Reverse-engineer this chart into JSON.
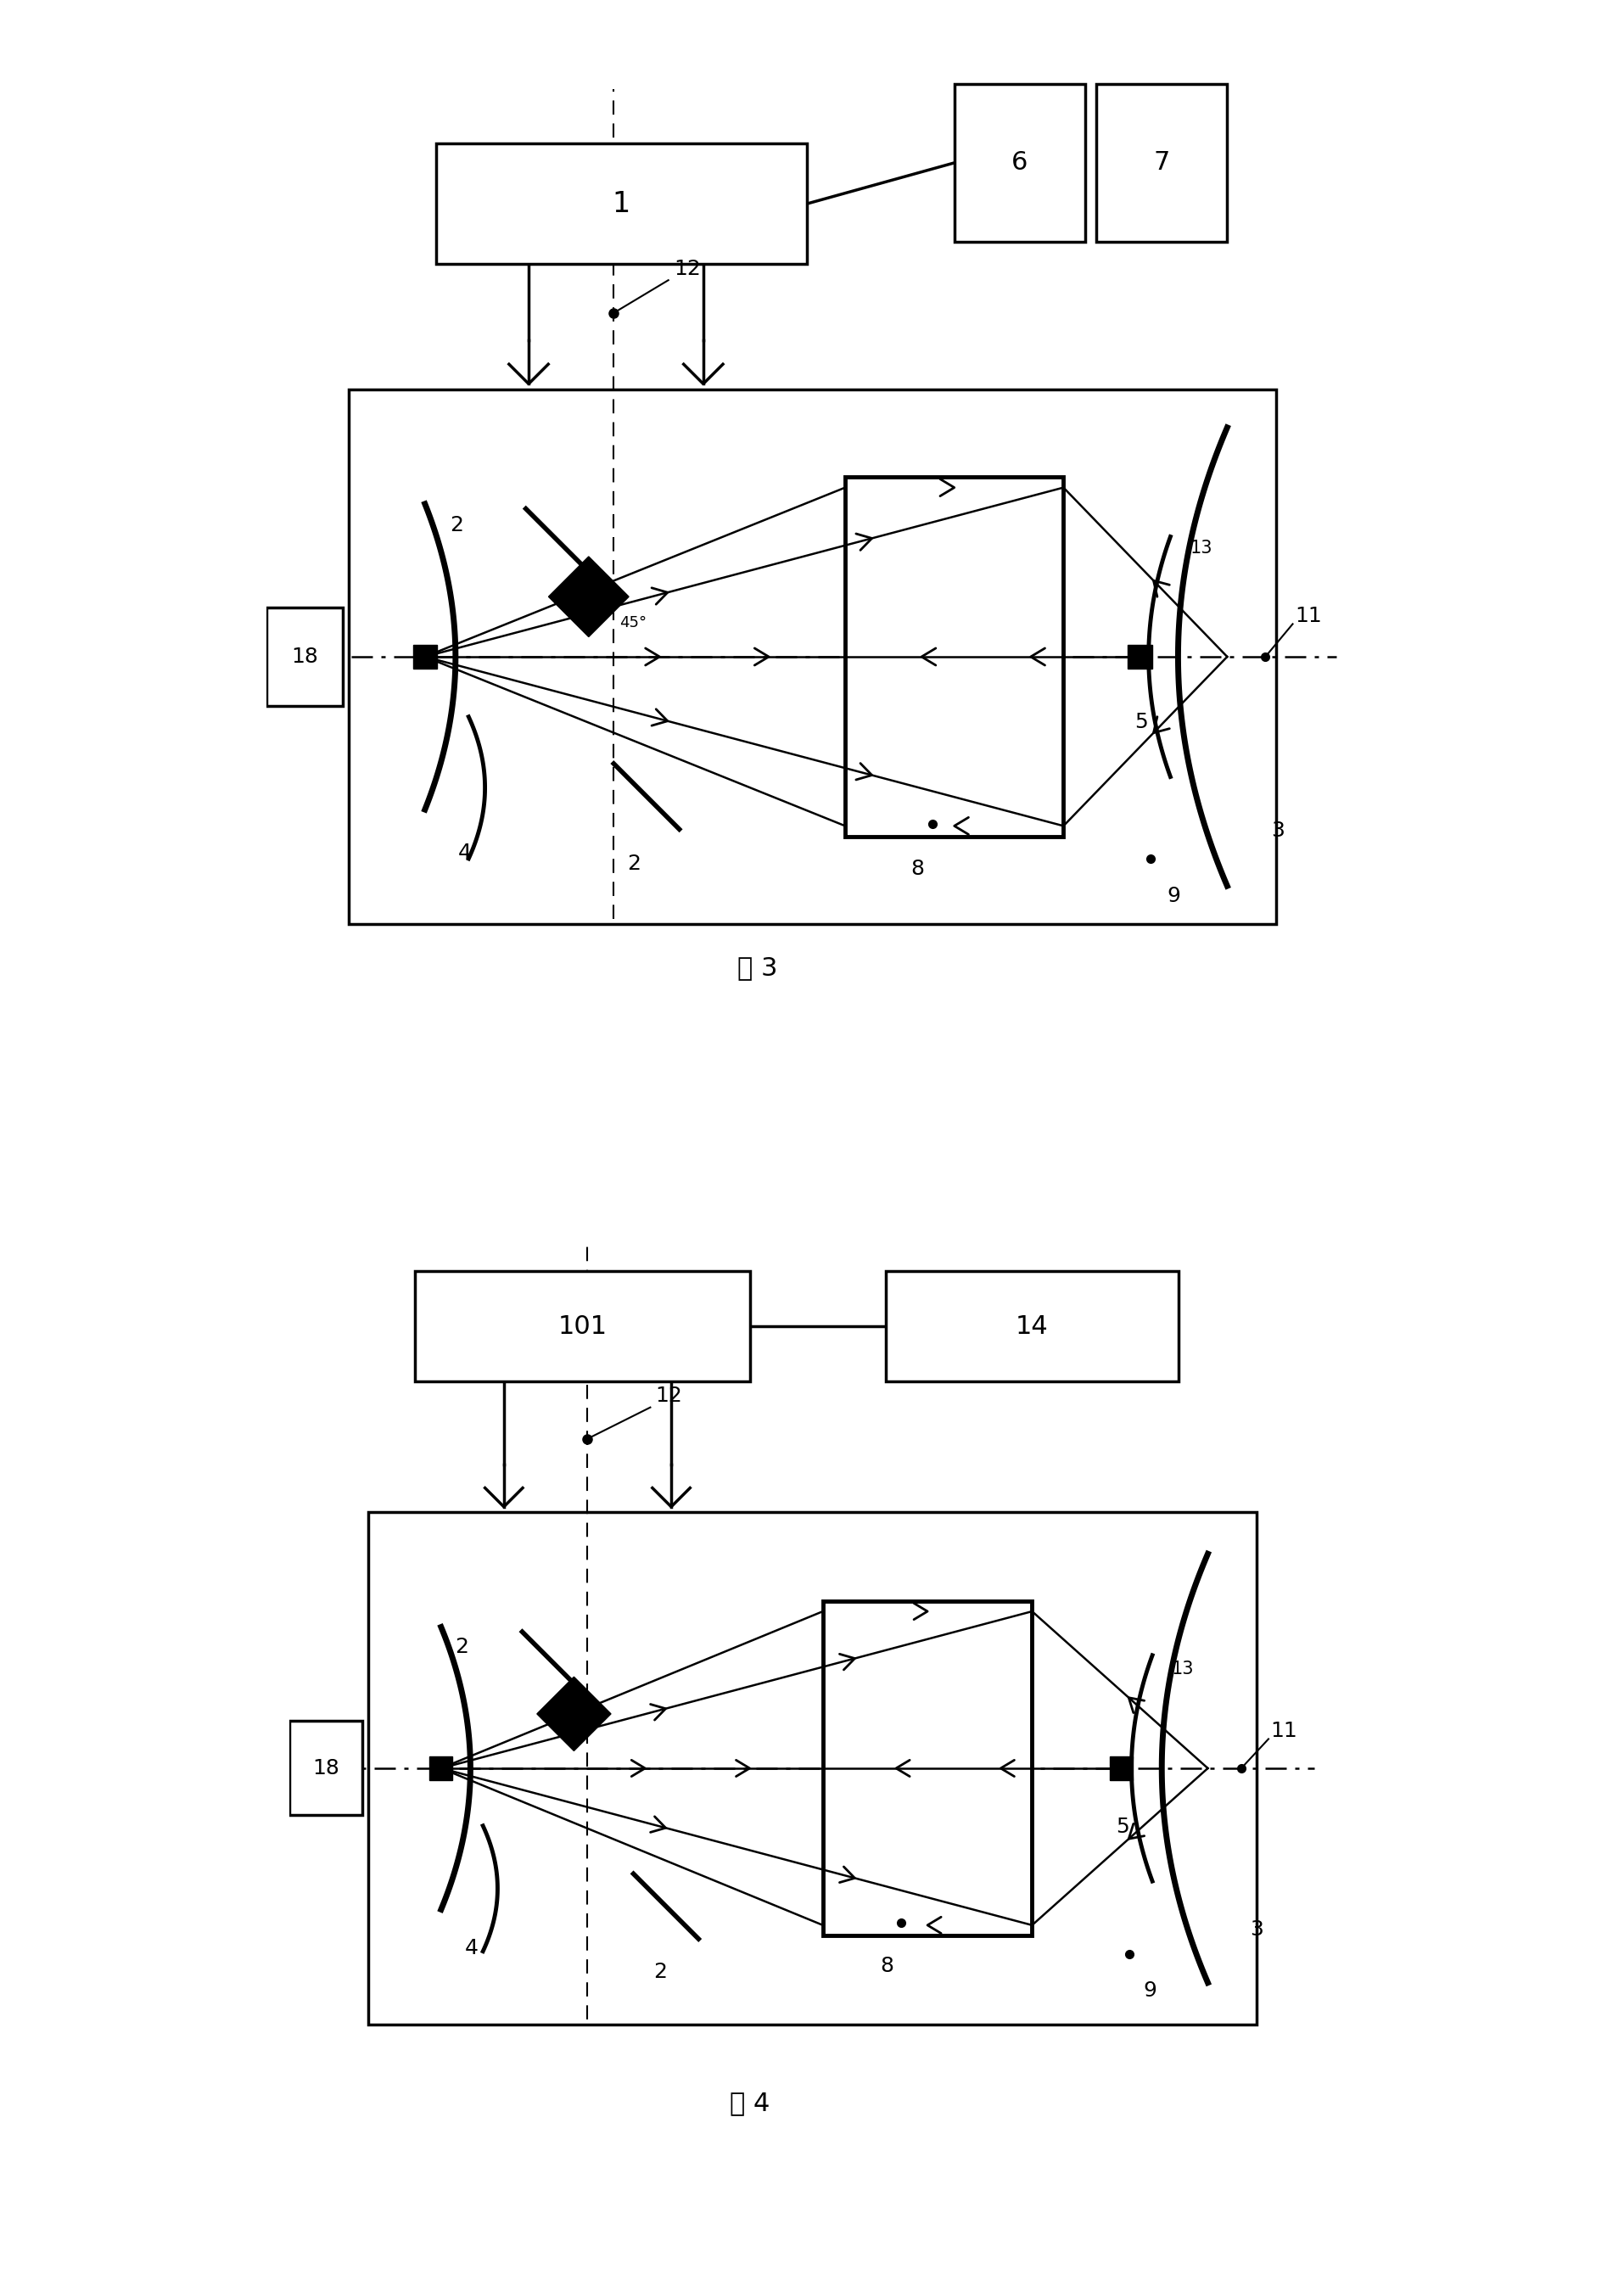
{
  "bg_color": "#ffffff",
  "fig3_title": "图 3",
  "fig4_title": "图 4",
  "label_1": "1",
  "label_6": "6",
  "label_7": "7",
  "label_18": "18",
  "label_101": "101",
  "label_14": "14",
  "label_2": "2",
  "label_3": "3",
  "label_4": "4",
  "label_5": "5",
  "label_8": "8",
  "label_9": "9",
  "label_11": "11",
  "label_12": "12",
  "label_13": "13",
  "label_45": "45°"
}
